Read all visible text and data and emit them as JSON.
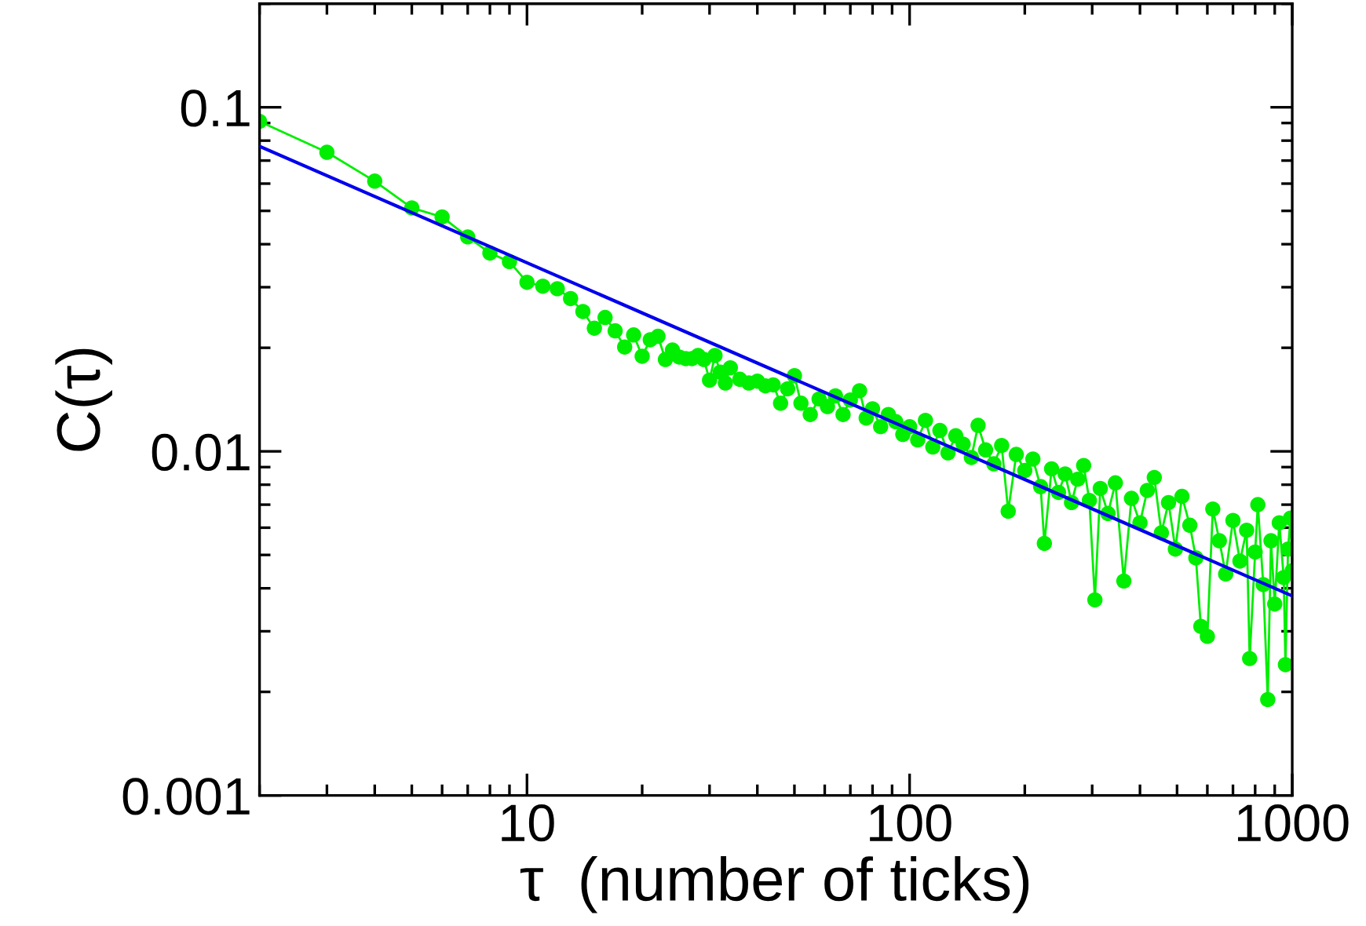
{
  "chart_data": {
    "type": "line",
    "xlabel": "τ  (number of ticks)",
    "ylabel": "C(τ)",
    "log": "xy",
    "xlim": [
      2,
      1000
    ],
    "ylim": [
      0.001,
      0.2
    ],
    "xticks": [
      10,
      100,
      1000
    ],
    "yticks": [
      0.001,
      0.01,
      0.1
    ],
    "grid": false,
    "legend": false,
    "series": [
      {
        "color": "#00ee00",
        "marker": "circle",
        "x": [
          2,
          3,
          4,
          5,
          6,
          7,
          8,
          9,
          10,
          11,
          12,
          13,
          14,
          15,
          16,
          17,
          18,
          19,
          20,
          21,
          22,
          23,
          24,
          25,
          26,
          27,
          28,
          29,
          30,
          31,
          32,
          33,
          34,
          36,
          38,
          40,
          42,
          44,
          46,
          48,
          50,
          52,
          55,
          58,
          61,
          64,
          67,
          70,
          74,
          77,
          80,
          84,
          88,
          92,
          96,
          100,
          105,
          110,
          115,
          120,
          126,
          132,
          138,
          145,
          151,
          158,
          166,
          174,
          181,
          190,
          200,
          210,
          220,
          225,
          235,
          245,
          255,
          265,
          275,
          285,
          295,
          305,
          315,
          330,
          345,
          363,
          380,
          400,
          418,
          436,
          455,
          475,
          495,
          515,
          540,
          560,
          577,
          600,
          620,
          645,
          670,
          700,
          730,
          760,
          774,
          800,
          813,
          840,
          863,
          880,
          900,
          925,
          950,
          960,
          975,
          990,
          1000
        ],
        "values": [
          0.091,
          0.074,
          0.061,
          0.051,
          0.048,
          0.042,
          0.0377,
          0.0356,
          0.031,
          0.0302,
          0.0297,
          0.0278,
          0.0255,
          0.0228,
          0.0245,
          0.0224,
          0.0201,
          0.0218,
          0.0189,
          0.0211,
          0.0216,
          0.0185,
          0.0197,
          0.0188,
          0.0186,
          0.0186,
          0.019,
          0.0185,
          0.0161,
          0.019,
          0.017,
          0.0158,
          0.0175,
          0.0162,
          0.0158,
          0.016,
          0.0155,
          0.0156,
          0.0138,
          0.0152,
          0.0166,
          0.0138,
          0.0128,
          0.0142,
          0.0135,
          0.0145,
          0.0128,
          0.0141,
          0.015,
          0.0125,
          0.0133,
          0.0118,
          0.0128,
          0.0122,
          0.0112,
          0.0118,
          0.0108,
          0.0123,
          0.0103,
          0.0115,
          0.0099,
          0.0111,
          0.0105,
          0.0096,
          0.0119,
          0.0101,
          0.0092,
          0.0104,
          0.0067,
          0.0098,
          0.0088,
          0.0095,
          0.0079,
          0.0054,
          0.0089,
          0.0076,
          0.0086,
          0.0071,
          0.0083,
          0.0091,
          0.0072,
          0.0037,
          0.0078,
          0.0066,
          0.0081,
          0.0042,
          0.0073,
          0.0062,
          0.0077,
          0.0084,
          0.0058,
          0.0071,
          0.0052,
          0.0074,
          0.0061,
          0.0049,
          0.0031,
          0.0029,
          0.0068,
          0.0055,
          0.0044,
          0.0063,
          0.0048,
          0.0059,
          0.0025,
          0.0051,
          0.007,
          0.0041,
          0.0019,
          0.0055,
          0.0036,
          0.0062,
          0.0043,
          0.0024,
          0.0052,
          0.0064,
          0.0045
        ]
      },
      {
        "color": "#0000ee",
        "marker": "none",
        "x": [
          2,
          1000
        ],
        "values": [
          0.077,
          0.0038
        ]
      }
    ]
  }
}
